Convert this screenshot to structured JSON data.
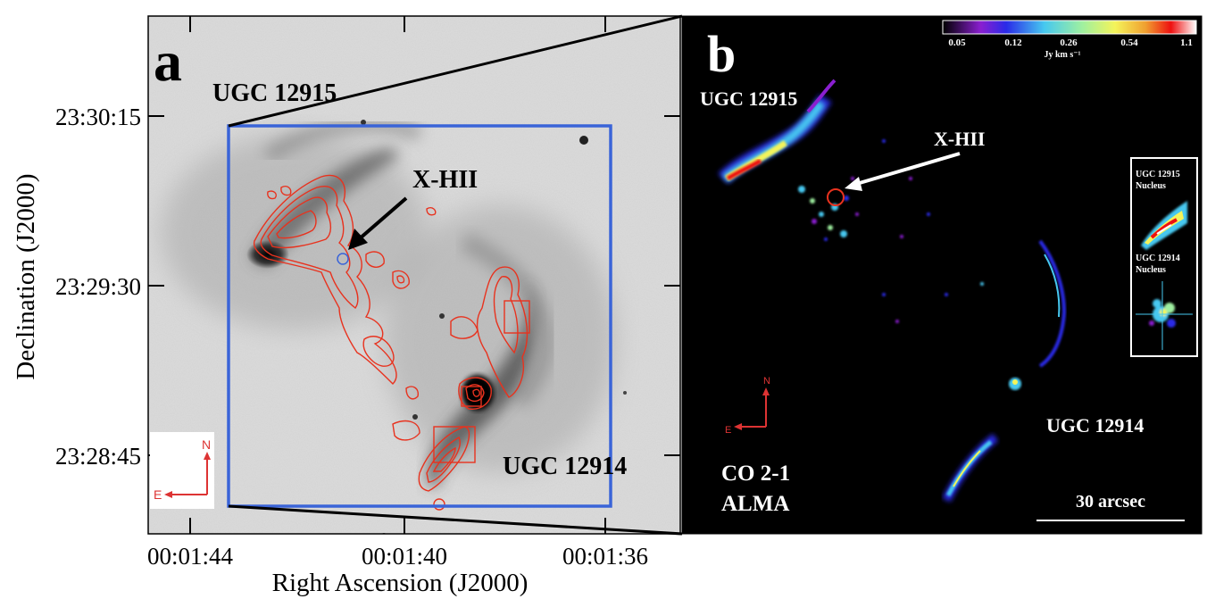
{
  "panel_a": {
    "letter": "a",
    "galaxy_labels": [
      "UGC 12915",
      "UGC 12914"
    ],
    "source_label": "X-HII",
    "compass": {
      "north": "N",
      "east": "E"
    },
    "y_ticks": [
      "23:30:15",
      "23:29:30",
      "23:28:45"
    ],
    "x_ticks": [
      "00:01:44",
      "00:01:40",
      "00:01:36"
    ],
    "xlabel": "Right Ascension (J2000)",
    "ylabel": "Declination (J2000)",
    "colors": {
      "contour": "#e8321e",
      "footprint": "#3a64d8",
      "arrow": "#000000"
    }
  },
  "panel_b": {
    "letter": "b",
    "galaxy_labels": [
      "UGC 12915",
      "UGC 12914"
    ],
    "source_label": "X-HII",
    "compass": {
      "north": "N",
      "east": "E"
    },
    "colorbar": {
      "ticks": [
        "0.05",
        "0.12",
        "0.26",
        "0.54",
        "1.1"
      ],
      "unit": "Jy km s⁻¹"
    },
    "tracer_lines": [
      "CO 2-1",
      "ALMA"
    ],
    "scalebar_label": "30 arcsec",
    "inset": {
      "top_label": [
        "UGC 12915",
        "Nucleus"
      ],
      "bottom_label": [
        "UGC 12914",
        "Nucleus"
      ]
    },
    "colors": {
      "circle": "#e8321e",
      "arrow": "#ffffff"
    }
  }
}
